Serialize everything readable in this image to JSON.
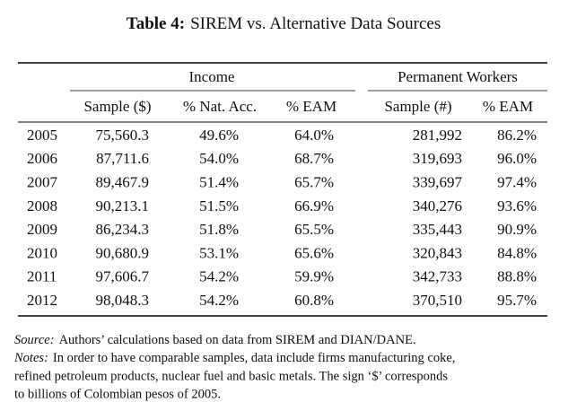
{
  "title": {
    "label": "Table 4:",
    "text": "SIREM vs. Alternative Data Sources"
  },
  "table": {
    "groups": [
      "Income",
      "Permanent Workers"
    ],
    "columns": [
      "Sample ($)",
      "% Nat. Acc.",
      "% EAM",
      "Sample (#)",
      "% EAM"
    ],
    "rows": [
      [
        "2005",
        "75,560.3",
        "49.6%",
        "64.0%",
        "281,992",
        "86.2%"
      ],
      [
        "2006",
        "87,711.6",
        "54.0%",
        "68.7%",
        "319,693",
        "96.0%"
      ],
      [
        "2007",
        "89,467.9",
        "51.4%",
        "65.7%",
        "339,697",
        "97.4%"
      ],
      [
        "2008",
        "90,213.1",
        "51.5%",
        "66.9%",
        "340,276",
        "93.6%"
      ],
      [
        "2009",
        "86,234.3",
        "51.8%",
        "65.5%",
        "335,443",
        "90.9%"
      ],
      [
        "2010",
        "90,680.9",
        "53.1%",
        "65.6%",
        "320,843",
        "84.8%"
      ],
      [
        "2011",
        "97,606.7",
        "54.2%",
        "59.9%",
        "342,733",
        "88.8%"
      ],
      [
        "2012",
        "98,048.3",
        "54.2%",
        "60.8%",
        "370,510",
        "95.7%"
      ]
    ]
  },
  "source": {
    "label": "Source:",
    "text": "Authors’ calculations based on data from SIREM and DIAN/DANE."
  },
  "notes": {
    "label": "Notes:",
    "lines": [
      "In order to have comparable samples, data include firms manufacturing coke,",
      "refined petroleum products, nuclear fuel and basic metals. The sign ‘$’ corresponds",
      "to billions of Colombian pesos of 2005."
    ]
  }
}
